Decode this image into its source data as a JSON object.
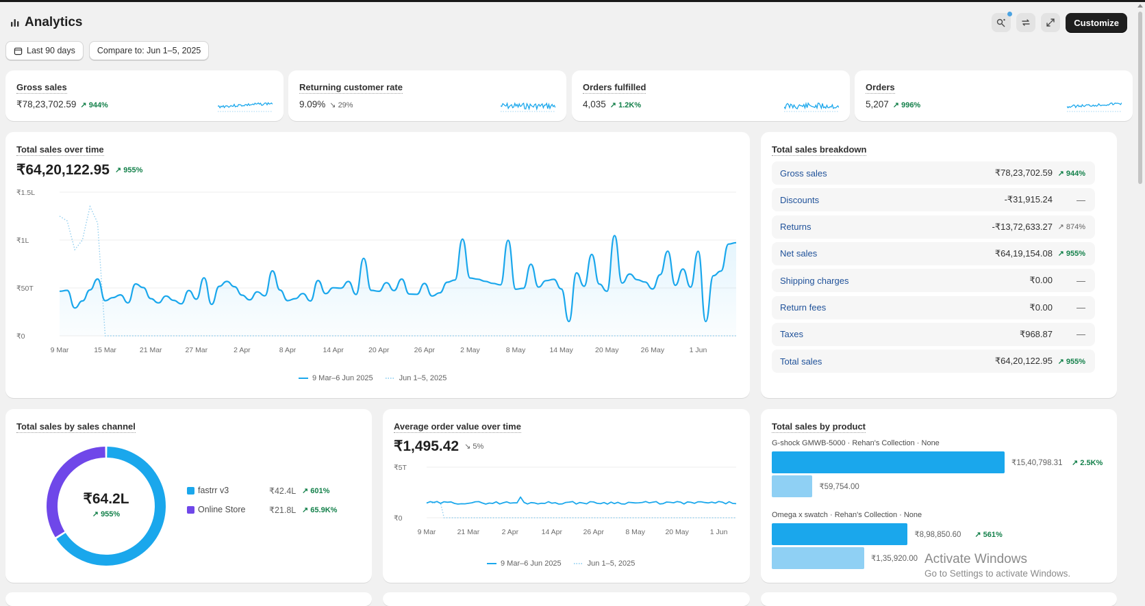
{
  "app": {
    "title": "Analytics",
    "customize_label": "Customize"
  },
  "filters": {
    "date_range": "Last 90 days",
    "compare": "Compare to: Jun 1–5, 2025"
  },
  "kpis": [
    {
      "label": "Gross sales",
      "value": "₹78,23,702.59",
      "change": "944%",
      "direction": "up"
    },
    {
      "label": "Returning customer rate",
      "value": "9.09%",
      "change": "29%",
      "direction": "down"
    },
    {
      "label": "Orders fulfilled",
      "value": "4,035",
      "change": "1.2K%",
      "direction": "up"
    },
    {
      "label": "Orders",
      "value": "5,207",
      "change": "996%",
      "direction": "up"
    }
  ],
  "total_sales": {
    "title": "Total sales over time",
    "value": "₹64,20,122.95",
    "change": "955%",
    "y_ticks": [
      "₹1.5L",
      "₹1L",
      "₹50T",
      "₹0"
    ],
    "x_ticks": [
      "9 Mar",
      "15 Mar",
      "21 Mar",
      "27 Mar",
      "2 Apr",
      "8 Apr",
      "14 Apr",
      "20 Apr",
      "26 Apr",
      "2 May",
      "8 May",
      "14 May",
      "20 May",
      "26 May",
      "1 Jun"
    ],
    "legend": [
      "9 Mar–6 Jun 2025",
      "Jun 1–5, 2025"
    ]
  },
  "breakdown": {
    "title": "Total sales breakdown",
    "rows": [
      {
        "label": "Gross sales",
        "amount": "₹78,23,702.59",
        "change": "944%",
        "direction": "up"
      },
      {
        "label": "Discounts",
        "amount": "-₹31,915.24",
        "change": "—",
        "direction": "none"
      },
      {
        "label": "Returns",
        "amount": "-₹13,72,633.27",
        "change": "874%",
        "direction": "neutral"
      },
      {
        "label": "Net sales",
        "amount": "₹64,19,154.08",
        "change": "955%",
        "direction": "up"
      },
      {
        "label": "Shipping charges",
        "amount": "₹0.00",
        "change": "—",
        "direction": "none"
      },
      {
        "label": "Return fees",
        "amount": "₹0.00",
        "change": "—",
        "direction": "none"
      },
      {
        "label": "Taxes",
        "amount": "₹968.87",
        "change": "—",
        "direction": "none"
      },
      {
        "label": "Total sales",
        "amount": "₹64,20,122.95",
        "change": "955%",
        "direction": "up"
      }
    ]
  },
  "channel": {
    "title": "Total sales by sales channel",
    "center_value": "₹64.2L",
    "center_change": "955%",
    "items": [
      {
        "name": "fastrr v3",
        "value": "₹42.4L",
        "change": "601%",
        "color": "#1aa7ec",
        "share": 0.66
      },
      {
        "name": "Online Store",
        "value": "₹21.8L",
        "change": "65.9K%",
        "color": "#6f47e9",
        "share": 0.34
      }
    ]
  },
  "aov": {
    "title": "Average order value over time",
    "value": "₹1,495.42",
    "change": "5%",
    "y_ticks": [
      "₹5T",
      "₹0"
    ],
    "x_ticks": [
      "9 Mar",
      "21 Mar",
      "2 Apr",
      "14 Apr",
      "26 Apr",
      "8 May",
      "20 May",
      "1 Jun"
    ],
    "legend": [
      "9 Mar–6 Jun 2025",
      "Jun 1–5, 2025"
    ]
  },
  "products": {
    "title": "Total sales by product",
    "items": [
      {
        "name": "G-shock GMWB-5000 · Rehan's Collection · None",
        "value": "₹15,40,798.31",
        "compare": "₹59,754.00",
        "change": "2.5K%"
      },
      {
        "name": "Omega x swatch · Rehan's Collection · None",
        "value": "₹8,98,850.60",
        "compare": "₹1,35,920.00",
        "change": "561%"
      }
    ]
  },
  "watermark": {
    "line1": "Activate Windows",
    "line2": "Go to Settings to activate Windows."
  },
  "colors": {
    "accent": "#1aa7ec",
    "positive": "#13804a",
    "secondary_series": "#6f47e9"
  }
}
